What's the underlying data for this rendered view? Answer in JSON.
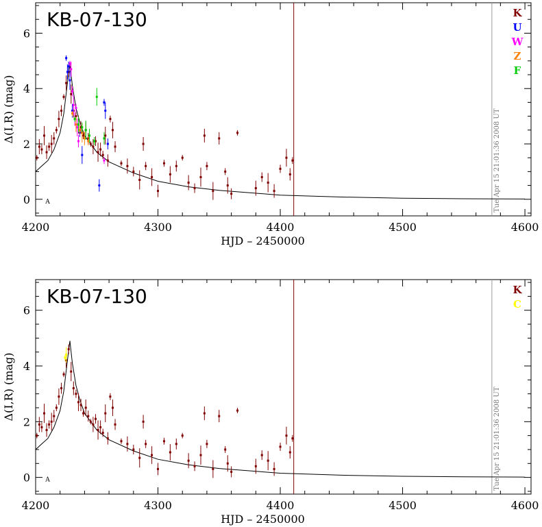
{
  "panels": [
    {
      "title": "KB-07-130",
      "xlabel": "HJD – 2450000",
      "ylabel": "Δ(I,R) (mag)",
      "timestamp": "Tue Apr 15 21:01:36 2008 UT",
      "marker_letter": "A",
      "legend": [
        {
          "label": "K",
          "color": "#800000"
        },
        {
          "label": "U",
          "color": "#0000ff"
        },
        {
          "label": "W",
          "color": "#ff00ff"
        },
        {
          "label": "Z",
          "color": "#ff8000"
        },
        {
          "label": "F",
          "color": "#00cc00"
        }
      ]
    },
    {
      "title": "KB-07-130",
      "xlabel": "HJD – 2450000",
      "ylabel": "Δ(I,R) (mag)",
      "timestamp": "Tue Apr 15 21:01:36 2008 UT",
      "marker_letter": "A",
      "legend": [
        {
          "label": "K",
          "color": "#800000"
        },
        {
          "label": "C",
          "color": "#ffff00"
        }
      ]
    }
  ],
  "chart_data": [
    {
      "type": "scatter",
      "title": "KB-07-130",
      "xlabel": "HJD – 2450000",
      "ylabel": "Δ(I,R) (mag)",
      "xlim": [
        4200,
        4605
      ],
      "ylim": [
        -0.6,
        7.1
      ],
      "xticks": [
        4200,
        4300,
        4400,
        4500,
        4600
      ],
      "yticks": [
        0,
        2,
        4,
        6
      ],
      "grid": false,
      "legend_position": "top-right",
      "series": [
        {
          "name": "K",
          "color": "#800000",
          "x": [
            4201,
            4203,
            4205,
            4207,
            4209,
            4211,
            4213,
            4215,
            4217,
            4219,
            4221,
            4223,
            4225,
            4227,
            4229,
            4231,
            4233,
            4235,
            4237,
            4239,
            4241,
            4243,
            4245,
            4247,
            4249,
            4251,
            4253,
            4255,
            4257,
            4259,
            4261,
            4263,
            4265,
            4270,
            4275,
            4280,
            4285,
            4288,
            4290,
            4295,
            4300,
            4305,
            4310,
            4315,
            4320,
            4325,
            4330,
            4335,
            4338,
            4340,
            4345,
            4350,
            4355,
            4357,
            4360,
            4365,
            4380,
            4385,
            4390,
            4395,
            4400,
            4405,
            4408,
            4410
          ],
          "y": [
            1.5,
            1.9,
            1.8,
            2.3,
            1.7,
            1.9,
            2.0,
            2.2,
            2.5,
            2.9,
            3.2,
            3.7,
            4.2,
            4.6,
            3.8,
            3.2,
            3.0,
            2.7,
            2.6,
            2.3,
            2.5,
            2.2,
            2.0,
            1.9,
            2.1,
            1.7,
            1.8,
            1.6,
            2.3,
            1.4,
            2.9,
            2.5,
            1.9,
            1.3,
            1.2,
            1.0,
            0.7,
            2.0,
            1.2,
            0.8,
            0.3,
            1.3,
            0.9,
            1.2,
            1.5,
            0.6,
            0.4,
            0.8,
            2.3,
            1.2,
            0.3,
            2.2,
            1.0,
            0.5,
            0.2,
            2.4,
            0.4,
            0.8,
            0.6,
            0.3,
            1.1,
            1.5,
            0.9,
            1.4
          ]
        },
        {
          "name": "U",
          "color": "#0000ff",
          "x": [
            4225,
            4226,
            4227,
            4228,
            4230,
            4236,
            4238,
            4252,
            4256,
            4257,
            4259
          ],
          "y": [
            5.1,
            4.6,
            4.8,
            4.3,
            3.2,
            2.4,
            1.6,
            0.5,
            3.5,
            3.2,
            2.0
          ]
        },
        {
          "name": "W",
          "color": "#ff00ff",
          "x": [
            4228,
            4229,
            4230,
            4231,
            4232,
            4233,
            4234,
            4235,
            4256
          ],
          "y": [
            4.9,
            4.7,
            3.9,
            3.4,
            2.9,
            3.3,
            2.6,
            2.1,
            1.4
          ]
        },
        {
          "name": "Z",
          "color": "#ff8000",
          "x": [
            4230,
            4233,
            4236,
            4238,
            4240,
            4243
          ],
          "y": [
            3.1,
            2.7,
            2.5,
            2.4,
            2.2,
            2.1
          ]
        },
        {
          "name": "F",
          "color": "#00cc00",
          "x": [
            4232,
            4235,
            4238,
            4241,
            4244,
            4248,
            4250,
            4256
          ],
          "y": [
            2.9,
            2.7,
            2.6,
            2.5,
            2.3,
            2.1,
            3.7,
            2.2
          ]
        }
      ],
      "model_curve": {
        "x": [
          4200,
          4205,
          4210,
          4215,
          4220,
          4223,
          4226,
          4228,
          4230,
          4233,
          4236,
          4240,
          4250,
          4260,
          4280,
          4300,
          4325,
          4350,
          4400,
          4450,
          4500,
          4550,
          4600
        ],
        "y": [
          1.0,
          1.2,
          1.4,
          1.8,
          2.4,
          3.1,
          4.2,
          4.9,
          4.1,
          3.3,
          2.8,
          2.3,
          1.7,
          1.35,
          0.95,
          0.65,
          0.45,
          0.32,
          0.15,
          0.08,
          0.04,
          0.02,
          0.01
        ]
      }
    },
    {
      "type": "scatter",
      "title": "KB-07-130",
      "xlabel": "HJD – 2450000",
      "ylabel": "Δ(I,R) (mag)",
      "xlim": [
        4200,
        4605
      ],
      "ylim": [
        -0.6,
        7.1
      ],
      "xticks": [
        4200,
        4300,
        4400,
        4500,
        4600
      ],
      "yticks": [
        0,
        2,
        4,
        6
      ],
      "grid": false,
      "legend_position": "top-right",
      "series": [
        {
          "name": "K",
          "color": "#800000",
          "x": [
            4201,
            4203,
            4205,
            4207,
            4209,
            4211,
            4213,
            4215,
            4217,
            4219,
            4221,
            4223,
            4225,
            4227,
            4229,
            4231,
            4233,
            4235,
            4237,
            4239,
            4241,
            4243,
            4245,
            4247,
            4249,
            4251,
            4253,
            4255,
            4257,
            4259,
            4261,
            4263,
            4265,
            4270,
            4275,
            4280,
            4285,
            4288,
            4290,
            4295,
            4300,
            4305,
            4310,
            4315,
            4320,
            4325,
            4330,
            4335,
            4338,
            4340,
            4345,
            4350,
            4355,
            4357,
            4360,
            4365,
            4380,
            4385,
            4390,
            4395,
            4400,
            4405,
            4408,
            4410
          ],
          "y": [
            1.5,
            1.9,
            1.8,
            2.3,
            1.7,
            1.9,
            2.0,
            2.2,
            2.5,
            2.9,
            3.2,
            3.7,
            4.2,
            4.6,
            3.8,
            3.2,
            3.0,
            2.7,
            2.6,
            2.3,
            2.5,
            2.2,
            2.0,
            1.9,
            2.1,
            1.7,
            1.8,
            1.6,
            2.3,
            1.4,
            2.9,
            2.5,
            1.9,
            1.3,
            1.2,
            1.0,
            0.7,
            2.0,
            1.2,
            0.8,
            0.3,
            1.3,
            0.9,
            1.2,
            1.5,
            0.6,
            0.4,
            0.8,
            2.3,
            1.2,
            0.3,
            2.2,
            1.0,
            0.5,
            0.2,
            2.4,
            0.4,
            0.8,
            0.6,
            0.3,
            1.1,
            1.5,
            0.9,
            1.4
          ]
        },
        {
          "name": "C",
          "color": "#ffff00",
          "x": [
            4224,
            4225
          ],
          "y": [
            4.3,
            4.4
          ]
        }
      ],
      "model_curve": {
        "x": [
          4200,
          4205,
          4210,
          4215,
          4220,
          4223,
          4226,
          4228,
          4230,
          4233,
          4236,
          4240,
          4250,
          4260,
          4280,
          4300,
          4325,
          4350,
          4400,
          4450,
          4500,
          4550,
          4600
        ],
        "y": [
          1.0,
          1.2,
          1.4,
          1.8,
          2.4,
          3.1,
          4.2,
          4.9,
          4.1,
          3.3,
          2.8,
          2.3,
          1.7,
          1.35,
          0.95,
          0.65,
          0.45,
          0.32,
          0.15,
          0.08,
          0.04,
          0.02,
          0.01
        ]
      }
    }
  ]
}
